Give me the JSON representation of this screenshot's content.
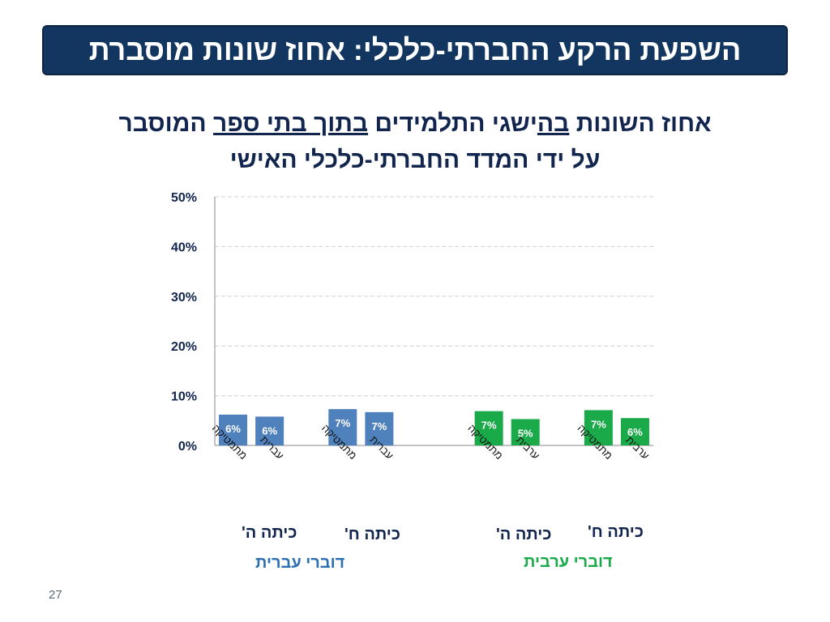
{
  "header": {
    "title": "השפעת הרקע החברתי-כלכלי: אחוז שונות מוסברת"
  },
  "subtitle": {
    "line1_pre": "אחוז השונות ",
    "line1_u1": "בה",
    "line1_mid": "ישגי התלמידים ",
    "line1_u2": "בתוך בתי ספר",
    "line1_post": " המוסבר",
    "line2": "על ידי המדד החברתי-כלכלי האישי"
  },
  "chart_data": {
    "type": "bar",
    "ylim": [
      0,
      50
    ],
    "yticks": [
      0,
      10,
      20,
      30,
      40,
      50
    ],
    "ytick_labels": [
      "0%",
      "10%",
      "20%",
      "30%",
      "40%",
      "50%"
    ],
    "grid": true,
    "bars": [
      {
        "category": "מתמטיקה",
        "value": 6.2,
        "label": "6%",
        "color": "#4f81bd"
      },
      {
        "category": "עברית",
        "value": 5.8,
        "label": "6%",
        "color": "#4f81bd"
      },
      {
        "category": "מתמטיקה",
        "value": 7.3,
        "label": "7%",
        "color": "#4f81bd"
      },
      {
        "category": "עברית",
        "value": 6.7,
        "label": "7%",
        "color": "#4f81bd"
      },
      {
        "category": "מתמטיקה",
        "value": 6.9,
        "label": "7%",
        "color": "#1aaa4a"
      },
      {
        "category": "ערבית",
        "value": 5.3,
        "label": "5%",
        "color": "#1aaa4a"
      },
      {
        "category": "מתמטיקה",
        "value": 7.1,
        "label": "7%",
        "color": "#1aaa4a"
      },
      {
        "category": "ערבית",
        "value": 5.5,
        "label": "6%",
        "color": "#1aaa4a"
      }
    ],
    "grade_labels": [
      "כיתה ה'",
      "כיתה ח'",
      "כיתה ה'",
      "כיתה ח'"
    ],
    "group_labels": [
      {
        "text": "דוברי עברית",
        "color": "#2e6fb0"
      },
      {
        "text": "דוברי ערבית",
        "color": "#1aaa4a"
      }
    ]
  },
  "footer": {
    "page_number": "27"
  },
  "colors": {
    "banner_bg": "#12365f",
    "axis_text": "#12254f",
    "grade_text": "#12254f"
  }
}
